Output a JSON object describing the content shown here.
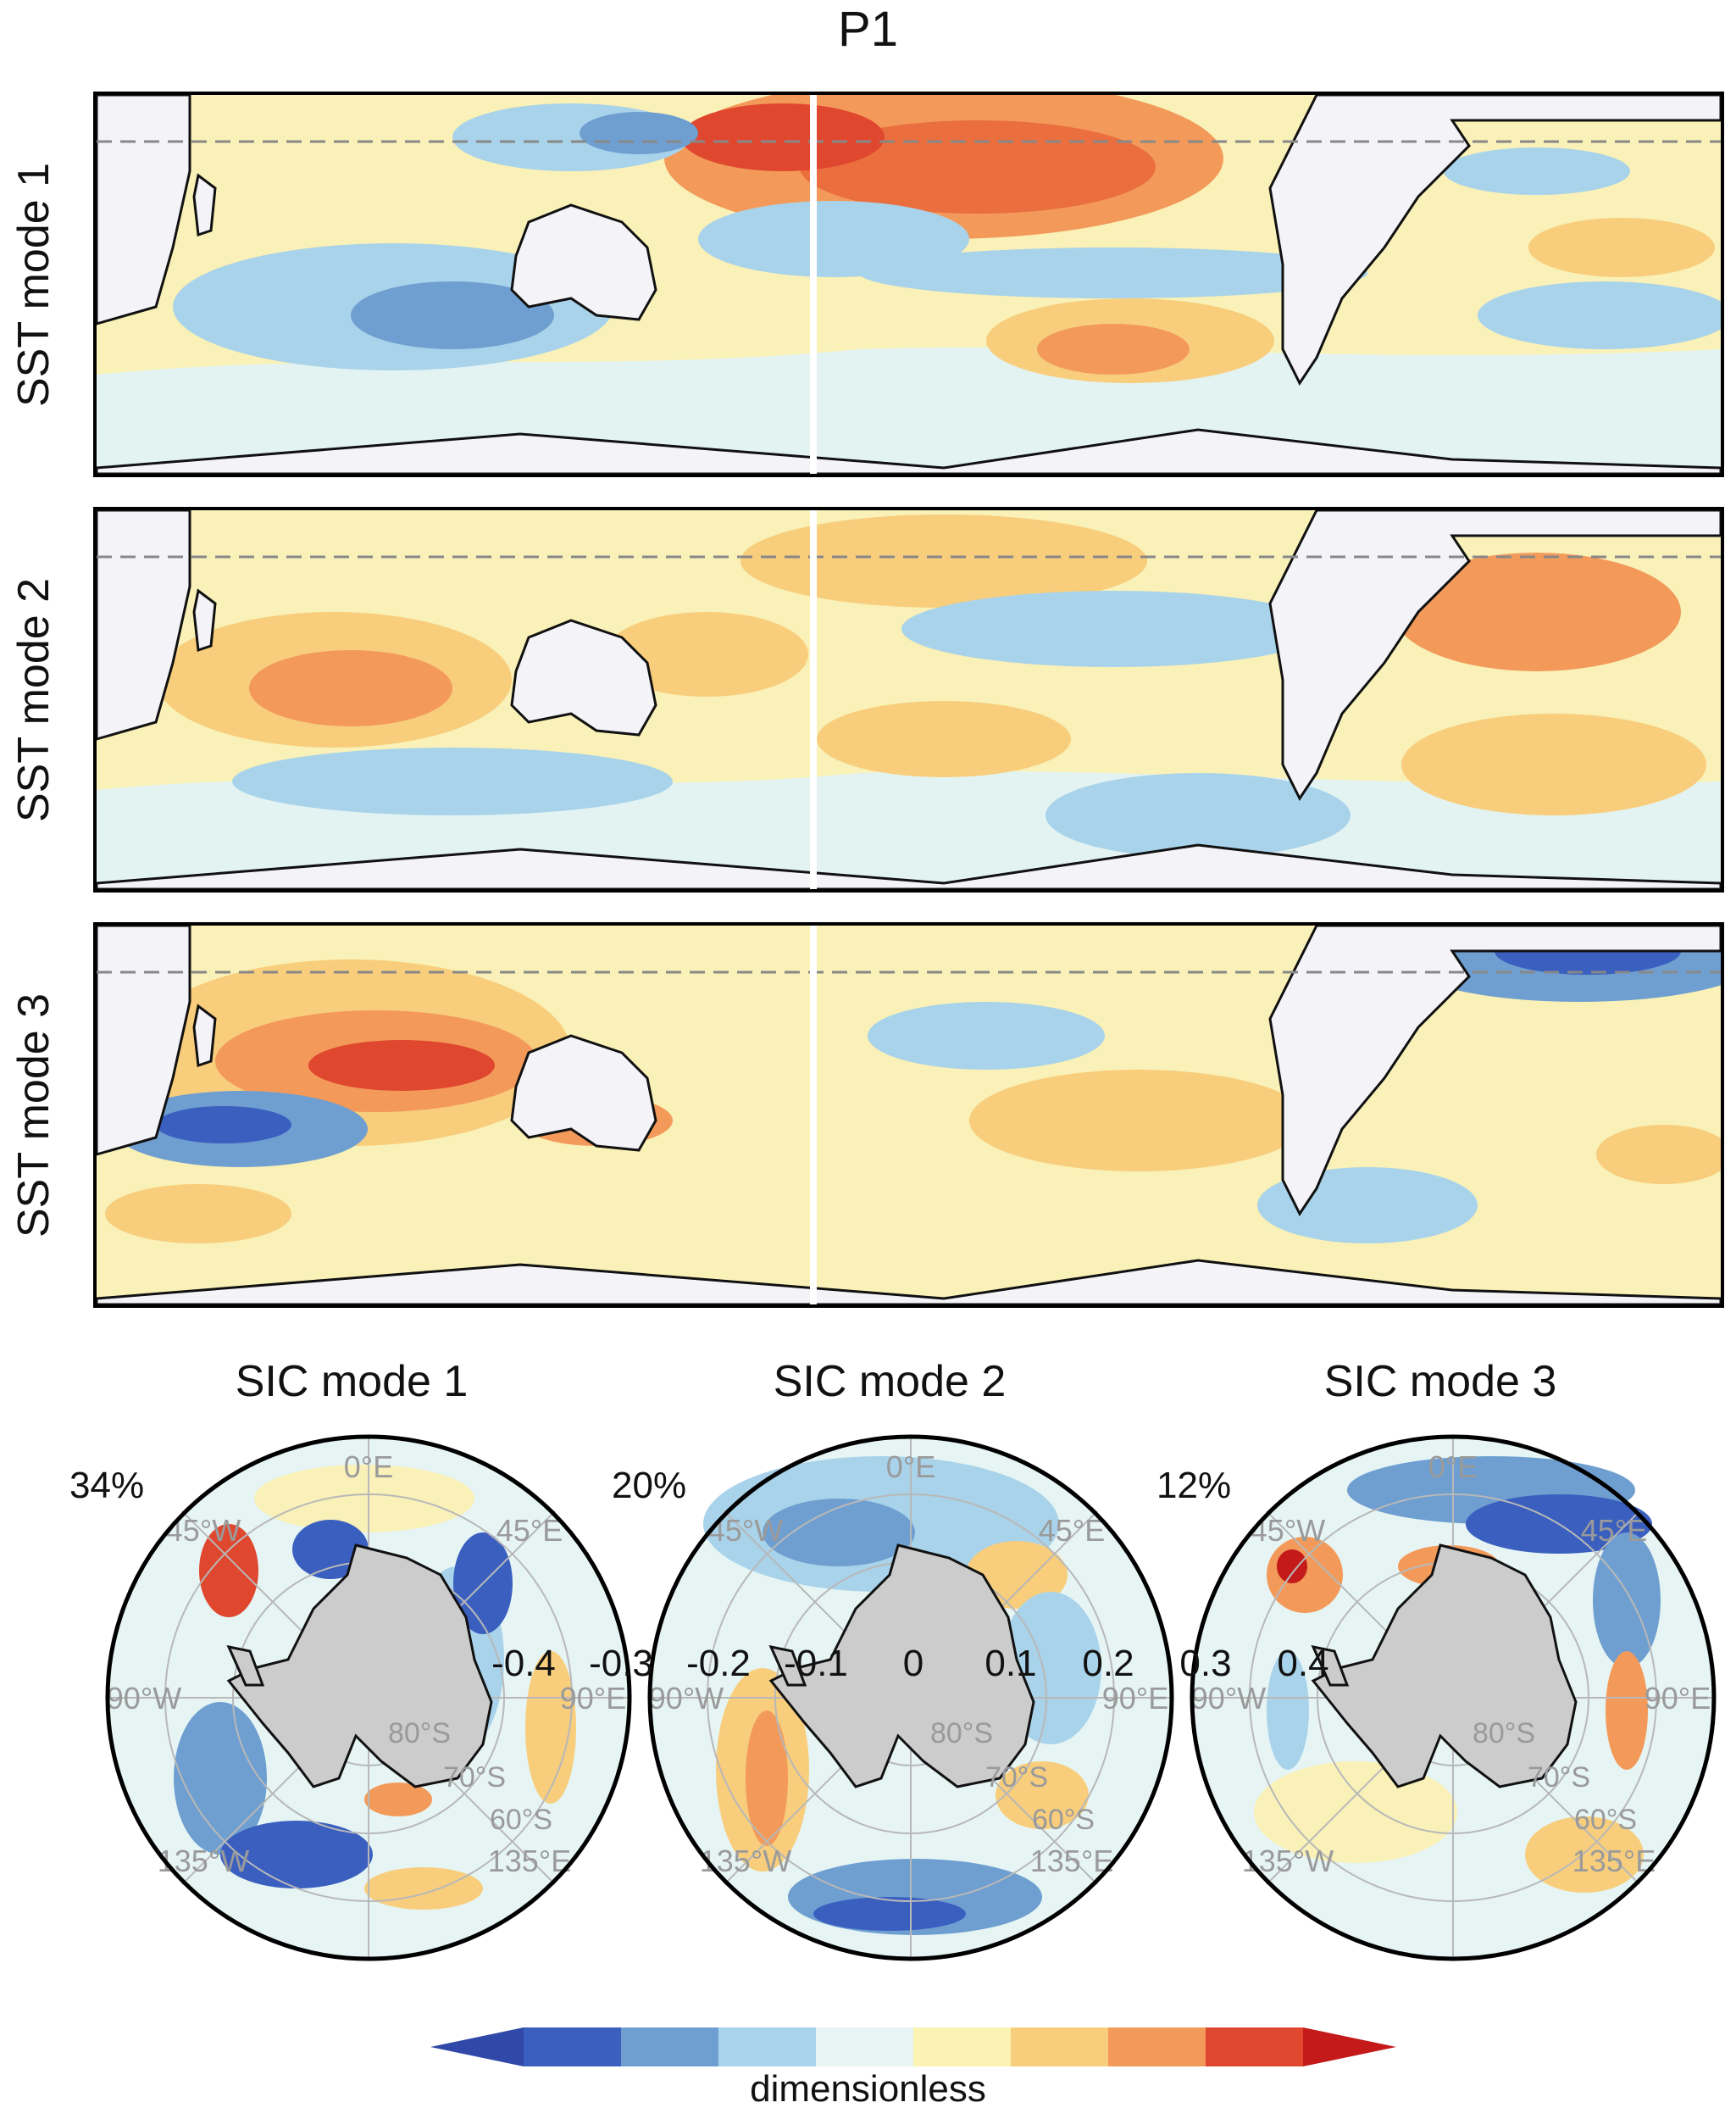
{
  "figure": {
    "title": "P1",
    "sst_panels": [
      {
        "label": "SST mode 1"
      },
      {
        "label": "SST mode 2"
      },
      {
        "label": "SST mode 3"
      }
    ],
    "sic_panels": [
      {
        "label": "SIC mode 1",
        "percent": "34%"
      },
      {
        "label": "SIC mode 2",
        "percent": "20%"
      },
      {
        "label": "SIC mode 3",
        "percent": "12%"
      }
    ],
    "polar_labels": {
      "lon_0": "0°E",
      "lon_45w": "45°W",
      "lon_45e": "45°E",
      "lon_90w": "90°W",
      "lon_90e": "90°E",
      "lon_135w": "135°W",
      "lon_135e": "135°E",
      "lat_80": "80°S",
      "lat_70": "70°S",
      "lat_60": "60°S"
    },
    "colorbar": {
      "ticks": [
        "-0.4",
        "-0.3",
        "-0.2",
        "-0.1",
        "0",
        "0.1",
        "0.2",
        "0.3",
        "0.4"
      ],
      "label": "dimensionless",
      "colors": [
        "#3a5fbf",
        "#6f9fd0",
        "#a9d3ea",
        "#e6f5f4",
        "#faf3b3",
        "#f8ce7c",
        "#f39a5a",
        "#e0472f"
      ],
      "low_extend": "#3048a8",
      "high_extend": "#c41a1a"
    }
  }
}
